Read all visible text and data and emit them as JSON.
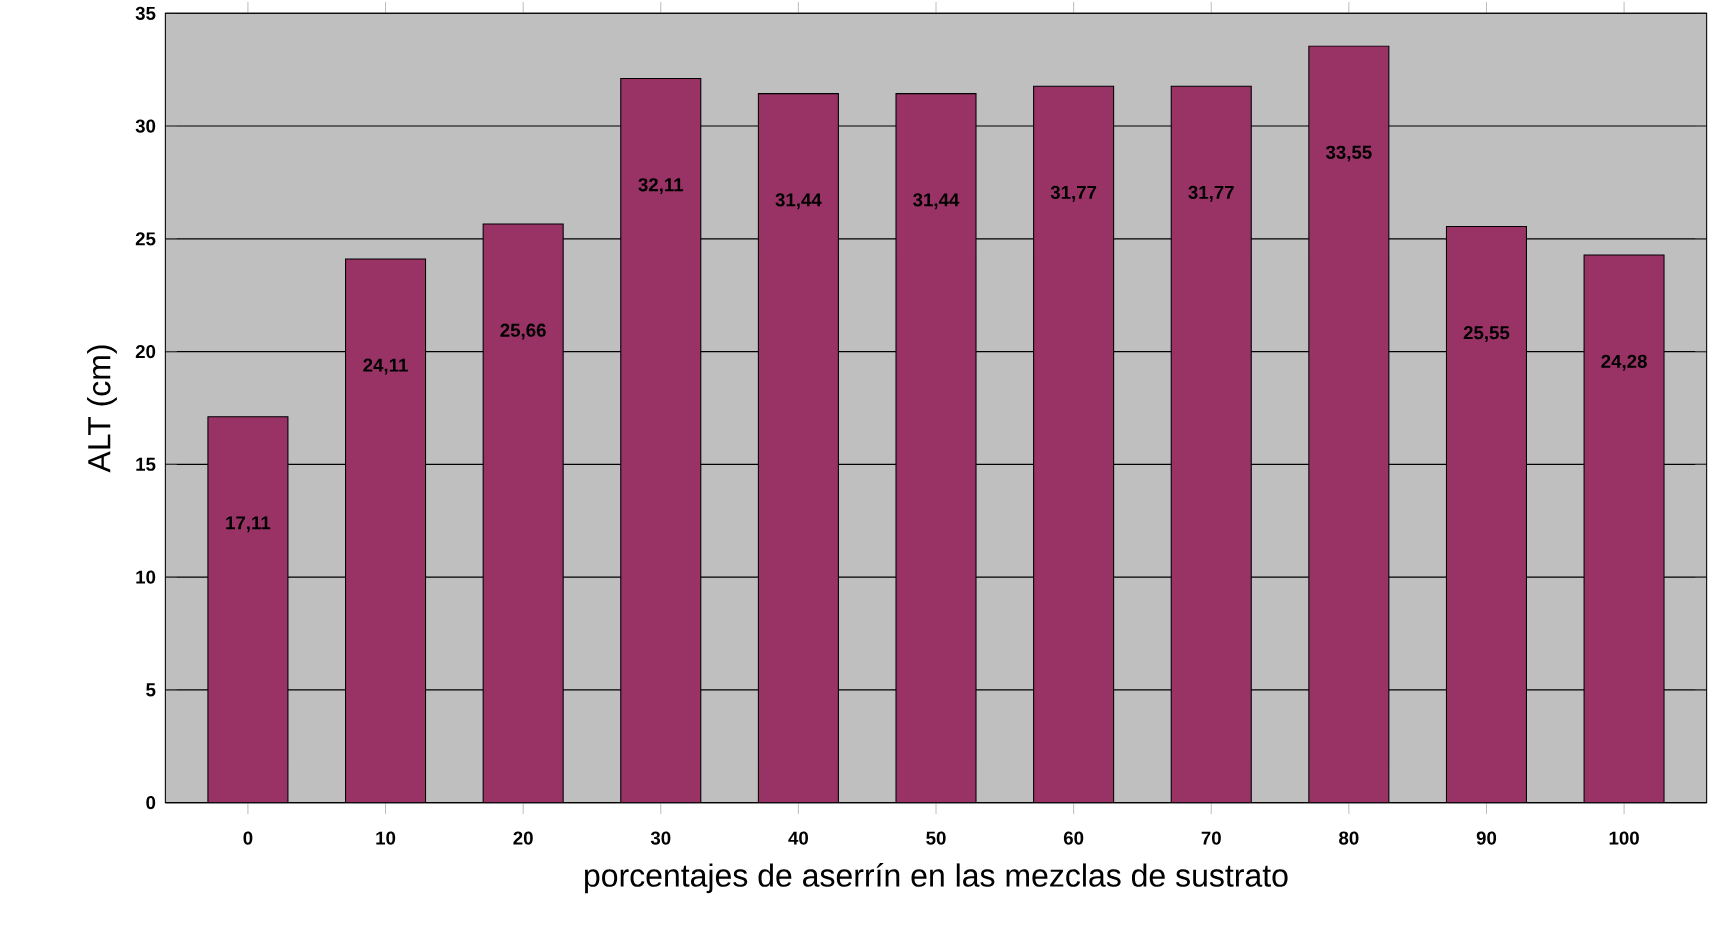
{
  "chart_data": {
    "type": "bar",
    "xlabel": "porcentajes de aserrín en las mezclas de sustrato",
    "ylabel": "ALT (cm)",
    "categories": [
      "0",
      "10",
      "20",
      "30",
      "40",
      "50",
      "60",
      "70",
      "80",
      "90",
      "100"
    ],
    "values": [
      17.11,
      24.11,
      25.66,
      32.11,
      31.44,
      31.44,
      31.77,
      31.77,
      33.55,
      25.55,
      24.28
    ],
    "value_labels": [
      "17,11",
      "24,11",
      "25,66",
      "32,11",
      "31,44",
      "31,44",
      "31,77",
      "31,77",
      "33,55",
      "25,55",
      "24,28"
    ],
    "color": "#993366",
    "ylim": [
      0,
      35
    ],
    "yticks": [
      0,
      5,
      10,
      15,
      20,
      25,
      30,
      35
    ],
    "grid": "y"
  }
}
